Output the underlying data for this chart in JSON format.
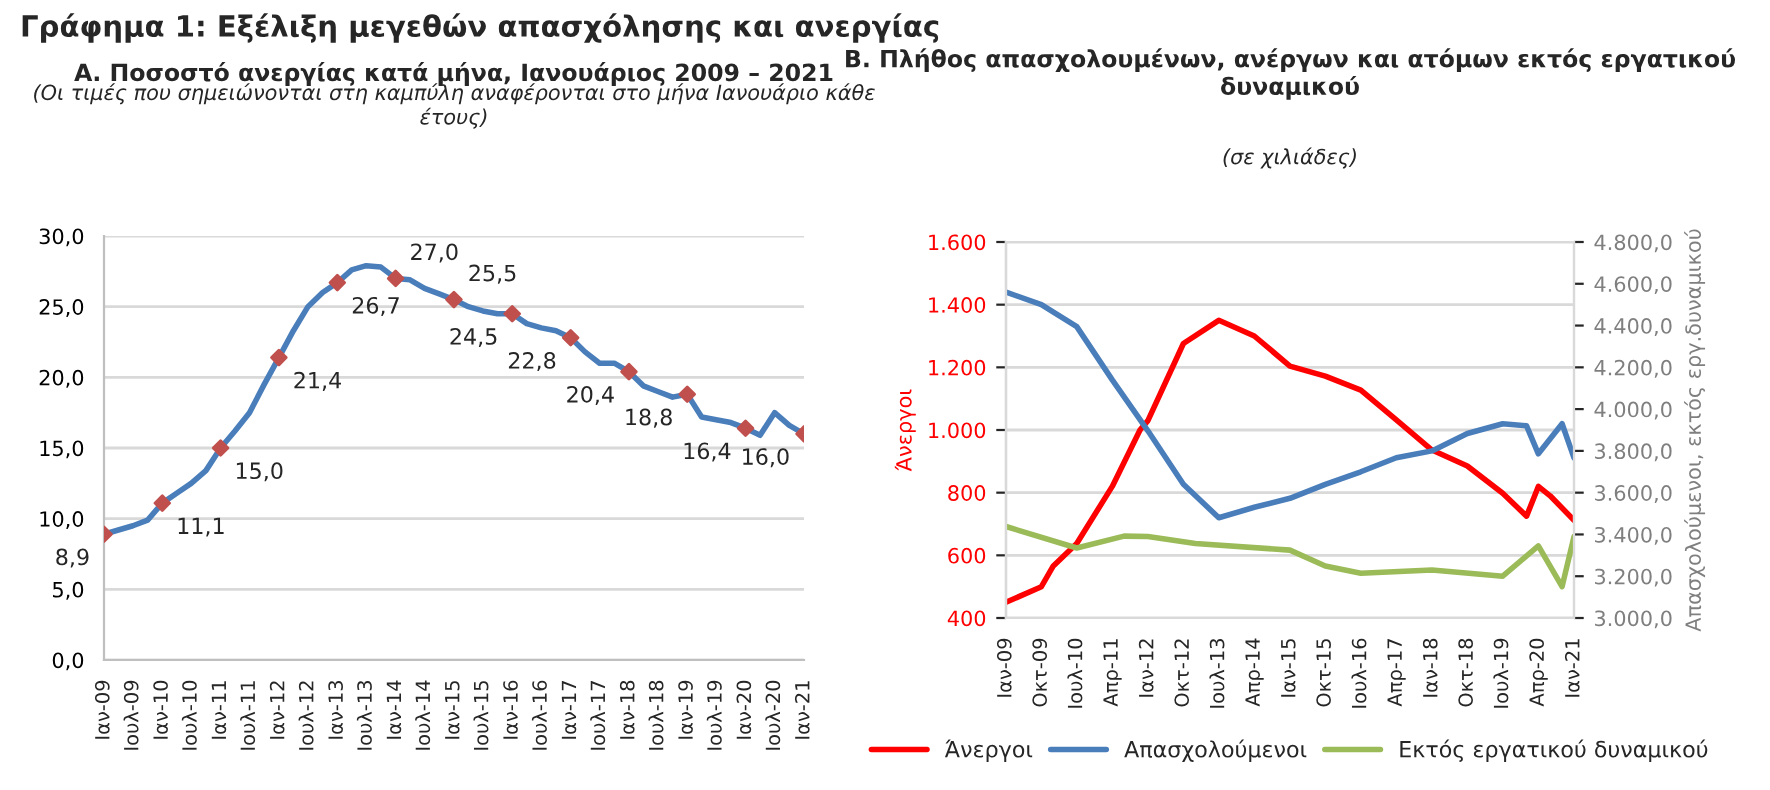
{
  "chart_data": [
    {
      "type": "line",
      "title": "Α. Ποσοστό ανεργίας κατά μήνα, Ιανουάριος 2009 – 2021",
      "subtitle": "(Οι τιμές που σημειώνονται στη καμπύλη αναφέρονται στο μήνα Ιανουάριο κάθε έτους)",
      "annotations": [
        "Γράφημα 1: Εξέλιξη μεγεθών απασχόλησης και ανεργίας"
      ],
      "xlim": [
        "2009-01",
        "2021-01"
      ],
      "xticks": [
        {
          "value": "2009-01",
          "label": "Ιαν-09"
        },
        {
          "value": "2009-07",
          "label": "Ιουλ-09"
        },
        {
          "value": "2010-01",
          "label": "Ιαν-10"
        },
        {
          "value": "2010-07",
          "label": "Ιουλ-10"
        },
        {
          "value": "2011-01",
          "label": "Ιαν-11"
        },
        {
          "value": "2011-07",
          "label": "Ιουλ-11"
        },
        {
          "value": "2012-01",
          "label": "Ιαν-12"
        },
        {
          "value": "2012-07",
          "label": "Ιουλ-12"
        },
        {
          "value": "2013-01",
          "label": "Ιαν-13"
        },
        {
          "value": "2013-07",
          "label": "Ιουλ-13"
        },
        {
          "value": "2014-01",
          "label": "Ιαν-14"
        },
        {
          "value": "2014-07",
          "label": "Ιουλ-14"
        },
        {
          "value": "2015-01",
          "label": "Ιαν-15"
        },
        {
          "value": "2015-07",
          "label": "Ιουλ-15"
        },
        {
          "value": "2016-01",
          "label": "Ιαν-16"
        },
        {
          "value": "2016-07",
          "label": "Ιουλ-16"
        },
        {
          "value": "2017-01",
          "label": "Ιαν-17"
        },
        {
          "value": "2017-07",
          "label": "Ιουλ-17"
        },
        {
          "value": "2018-01",
          "label": "Ιαν-18"
        },
        {
          "value": "2018-07",
          "label": "Ιουλ-18"
        },
        {
          "value": "2019-01",
          "label": "Ιαν-19"
        },
        {
          "value": "2019-07",
          "label": "Ιουλ-19"
        },
        {
          "value": "2020-01",
          "label": "Ιαν-20"
        },
        {
          "value": "2020-07",
          "label": "Ιουλ-20"
        },
        {
          "value": "2021-01",
          "label": "Ιαν-21"
        }
      ],
      "ylim": [
        0,
        30
      ],
      "yticks": [
        {
          "value": 0,
          "label": "0,0"
        },
        {
          "value": 5,
          "label": "5,0"
        },
        {
          "value": 10,
          "label": "10,0"
        },
        {
          "value": 15,
          "label": "15,0"
        },
        {
          "value": 20,
          "label": "20,0"
        },
        {
          "value": 25,
          "label": "25,0"
        },
        {
          "value": 30,
          "label": "30,0"
        }
      ],
      "grid": "y",
      "legend": false,
      "series": [
        {
          "type": "line",
          "color": "#4a7ebb",
          "x": [
            "2009-01",
            "2009-04",
            "2009-07",
            "2009-10",
            "2010-01",
            "2010-04",
            "2010-07",
            "2010-10",
            "2011-01",
            "2011-04",
            "2011-07",
            "2011-10",
            "2012-01",
            "2012-04",
            "2012-07",
            "2012-10",
            "2013-01",
            "2013-04",
            "2013-07",
            "2013-10",
            "2014-01",
            "2014-04",
            "2014-07",
            "2014-10",
            "2015-01",
            "2015-04",
            "2015-07",
            "2015-10",
            "2016-01",
            "2016-04",
            "2016-07",
            "2016-10",
            "2017-01",
            "2017-04",
            "2017-07",
            "2017-10",
            "2018-01",
            "2018-04",
            "2018-07",
            "2018-10",
            "2019-01",
            "2019-04",
            "2019-07",
            "2019-10",
            "2020-01",
            "2020-04",
            "2020-07",
            "2020-10",
            "2021-01"
          ],
          "values": [
            8.9,
            9.2,
            9.5,
            9.9,
            11.1,
            11.8,
            12.5,
            13.4,
            15.0,
            16.2,
            17.5,
            19.5,
            21.4,
            23.3,
            25.0,
            26.0,
            26.7,
            27.6,
            27.9,
            27.8,
            27.0,
            26.9,
            26.3,
            25.9,
            25.5,
            25.0,
            24.7,
            24.5,
            24.5,
            23.8,
            23.5,
            23.3,
            22.8,
            21.8,
            21.0,
            21.0,
            20.4,
            19.4,
            19.0,
            18.6,
            18.8,
            17.2,
            17.0,
            16.8,
            16.4,
            15.9,
            17.5,
            16.6,
            16.0
          ]
        },
        {
          "type": "scatter",
          "marker": "diamond",
          "color": "#c0504d",
          "x": [
            "2009-01",
            "2010-01",
            "2011-01",
            "2012-01",
            "2013-01",
            "2014-01",
            "2015-01",
            "2016-01",
            "2017-01",
            "2018-01",
            "2019-01",
            "2020-01",
            "2021-01"
          ],
          "values": [
            8.9,
            11.1,
            15.0,
            21.4,
            26.7,
            27.0,
            25.5,
            24.5,
            22.8,
            20.4,
            18.8,
            16.4,
            16.0
          ],
          "value_labels": [
            "8,9",
            "11,1",
            "15,0",
            "21,4",
            "26,7",
            "27,0",
            "25,5",
            "24,5",
            "22,8",
            "20,4",
            "18,8",
            "16,4",
            "16,0"
          ]
        }
      ]
    },
    {
      "type": "line",
      "title": "Β. Πλήθος απασχολουμένων, ανέργων και ατόμων εκτός εργατικού δυναμικού",
      "subtitle": "(σε χιλιάδες)",
      "ylabel": "Άνεργοι",
      "y2label": "Απασχολούμενοι, εκτός εργ.δυναμικού",
      "xlim": [
        "2009-01",
        "2021-01"
      ],
      "xticks": [
        {
          "value": "2009-01",
          "label": "Ιαν-09"
        },
        {
          "value": "2009-10",
          "label": "Οκτ-09"
        },
        {
          "value": "2010-07",
          "label": "Ιουλ-10"
        },
        {
          "value": "2011-04",
          "label": "Απρ-11"
        },
        {
          "value": "2012-01",
          "label": "Ιαν-12"
        },
        {
          "value": "2012-10",
          "label": "Οκτ-12"
        },
        {
          "value": "2013-07",
          "label": "Ιουλ-13"
        },
        {
          "value": "2014-04",
          "label": "Απρ-14"
        },
        {
          "value": "2015-01",
          "label": "Ιαν-15"
        },
        {
          "value": "2015-10",
          "label": "Οκτ-15"
        },
        {
          "value": "2016-07",
          "label": "Ιουλ-16"
        },
        {
          "value": "2017-04",
          "label": "Απρ-17"
        },
        {
          "value": "2018-01",
          "label": "Ιαν-18"
        },
        {
          "value": "2018-10",
          "label": "Οκτ-18"
        },
        {
          "value": "2019-07",
          "label": "Ιουλ-19"
        },
        {
          "value": "2020-04",
          "label": "Απρ-20"
        },
        {
          "value": "2021-01",
          "label": "Ιαν-21"
        }
      ],
      "ylim": [
        400,
        1600
      ],
      "yticks": [
        {
          "value": 400,
          "label": "400"
        },
        {
          "value": 600,
          "label": "600"
        },
        {
          "value": 800,
          "label": "800"
        },
        {
          "value": 1000,
          "label": "1.000"
        },
        {
          "value": 1200,
          "label": "1.200"
        },
        {
          "value": 1400,
          "label": "1.400"
        },
        {
          "value": 1600,
          "label": "1.600"
        }
      ],
      "y2lim": [
        3000,
        4800
      ],
      "y2ticks": [
        {
          "value": 3000,
          "label": "3.000,0"
        },
        {
          "value": 3200,
          "label": "3.200,0"
        },
        {
          "value": 3400,
          "label": "3.400,0"
        },
        {
          "value": 3600,
          "label": "3.600,0"
        },
        {
          "value": 3800,
          "label": "3.800,0"
        },
        {
          "value": 4000,
          "label": "4.000,0"
        },
        {
          "value": 4200,
          "label": "4.200,0"
        },
        {
          "value": 4400,
          "label": "4.400,0"
        },
        {
          "value": 4600,
          "label": "4.600,0"
        },
        {
          "value": 4800,
          "label": "4.800,0"
        }
      ],
      "grid": "y",
      "legend": "bottom",
      "series": [
        {
          "name": "Άνεργοι",
          "color": "#ff0000",
          "x": [
            "2009-01",
            "2009-10",
            "2010-01",
            "2010-07",
            "2011-04",
            "2011-11",
            "2012-01",
            "2012-10",
            "2013-07",
            "2014-04",
            "2015-01",
            "2015-10",
            "2016-07",
            "2017-04",
            "2018-01",
            "2018-10",
            "2019-07",
            "2020-01",
            "2020-04",
            "2020-07",
            "2021-01"
          ],
          "values": [
            450,
            500,
            566,
            638,
            820,
            1000,
            1030,
            1276,
            1350,
            1300,
            1204,
            1172,
            1127,
            1032,
            936,
            885,
            798,
            725,
            820,
            790,
            712
          ]
        },
        {
          "name": "Απασχολούμενοι",
          "color": "#4a7ebb",
          "axis": "y2",
          "x": [
            "2009-01",
            "2009-10",
            "2010-07",
            "2011-04",
            "2012-01",
            "2012-10",
            "2013-07",
            "2014-04",
            "2015-01",
            "2015-10",
            "2016-07",
            "2017-04",
            "2018-01",
            "2018-10",
            "2019-07",
            "2020-01",
            "2020-04",
            "2020-10",
            "2021-01"
          ],
          "values": [
            4560,
            4500,
            4395,
            4140,
            3896,
            3640,
            3480,
            3530,
            3573,
            3640,
            3700,
            3767,
            3800,
            3883,
            3930,
            3920,
            3786,
            3930,
            3767
          ]
        },
        {
          "name": "Εκτός εργατικού δυναμικού",
          "color": "#9bbb59",
          "axis": "y2",
          "x": [
            "2009-01",
            "2010-07",
            "2011-07",
            "2012-01",
            "2013-01",
            "2015-01",
            "2015-10",
            "2016-07",
            "2018-01",
            "2019-07",
            "2020-04",
            "2020-10",
            "2021-01"
          ],
          "values": [
            3438,
            3335,
            3392,
            3390,
            3357,
            3325,
            3249,
            3214,
            3230,
            3200,
            3345,
            3150,
            3390
          ]
        }
      ]
    }
  ]
}
